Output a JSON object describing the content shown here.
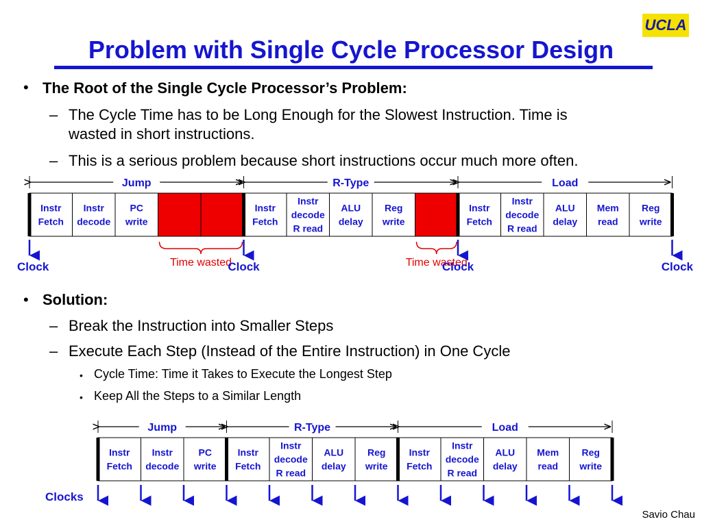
{
  "logo": "UCLA",
  "title": "Problem with Single Cycle Processor Design",
  "bullets": {
    "root": "The Root of the Single Cycle Processor’s Problem:",
    "sub1_line1": "The Cycle Time has to be Long Enough for the Slowest Instruction.  Time is",
    "sub1_line2": "wasted in short instructions.",
    "sub2": "This is a serious problem because short instructions occur much more often.",
    "solution": "Solution:",
    "sol1": "Break the Instruction into Smaller Steps",
    "sol2": "Execute Each Step (Instead of the Entire Instruction) in One Cycle",
    "sol2a": "Cycle Time: Time it Takes to Execute the Longest Step",
    "sol2b": "Keep All the Steps to a Similar Length"
  },
  "diagram1": {
    "segments": [
      {
        "label": "Jump",
        "cells": [
          [
            "Instr",
            "Fetch"
          ],
          [
            "Instr",
            "decode"
          ],
          [
            "PC",
            "write"
          ]
        ],
        "wasted_cells": 2
      },
      {
        "label": "R-Type",
        "cells": [
          [
            "Instr",
            "Fetch"
          ],
          [
            "Instr",
            "decode",
            "R read"
          ],
          [
            "ALU",
            "delay"
          ],
          [
            "Reg",
            "write"
          ]
        ],
        "wasted_cells": 1
      },
      {
        "label": "Load",
        "cells": [
          [
            "Instr",
            "Fetch"
          ],
          [
            "Instr",
            "decode",
            "R read"
          ],
          [
            "ALU",
            "delay"
          ],
          [
            "Mem",
            "read"
          ],
          [
            "Reg",
            "write"
          ]
        ],
        "wasted_cells": 0
      }
    ],
    "clock_label": "Clock",
    "wasted_label": "Time wasted"
  },
  "diagram2": {
    "segments": [
      {
        "label": "Jump",
        "cells": [
          [
            "Instr",
            "Fetch"
          ],
          [
            "Instr",
            "decode"
          ],
          [
            "PC",
            "write"
          ]
        ]
      },
      {
        "label": "R-Type",
        "cells": [
          [
            "Instr",
            "Fetch"
          ],
          [
            "Instr",
            "decode",
            "R read"
          ],
          [
            "ALU",
            "delay"
          ],
          [
            "Reg",
            "write"
          ]
        ]
      },
      {
        "label": "Load",
        "cells": [
          [
            "Instr",
            "Fetch"
          ],
          [
            "Instr",
            "decode",
            "R read"
          ],
          [
            "ALU",
            "delay"
          ],
          [
            "Mem",
            "read"
          ],
          [
            "Reg",
            "write"
          ]
        ]
      }
    ],
    "clocks_label": "Clocks"
  },
  "colors": {
    "accent": "#1515d0",
    "wasted_fill": "#ee0000",
    "wasted_text": "#e00000",
    "logo_bg": "#f5e200"
  },
  "footer": "Savio Chau"
}
